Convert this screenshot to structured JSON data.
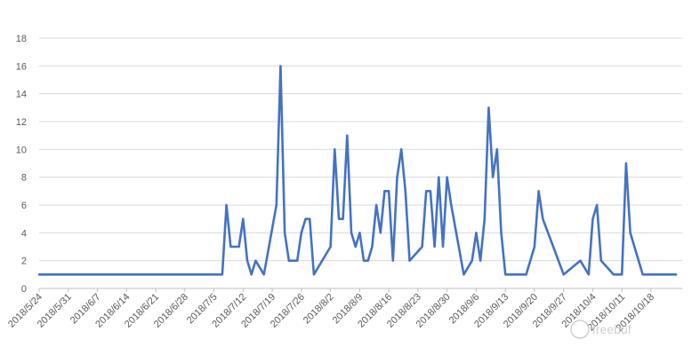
{
  "chart_data": {
    "type": "line",
    "title": "",
    "xlabel": "",
    "ylabel": "",
    "ylim": [
      0,
      18
    ],
    "y_ticks": [
      0,
      2,
      4,
      6,
      8,
      10,
      12,
      14,
      16,
      18
    ],
    "grid": true,
    "legend": "none",
    "x_tick_labels": [
      "2018/5/24",
      "2018/5/31",
      "2018/6/7",
      "2018/6/14",
      "2018/6/21",
      "2018/6/28",
      "2018/7/5",
      "2018/7/12",
      "2018/7/19",
      "2018/7/26",
      "2018/8/2",
      "2018/8/9",
      "2018/8/16",
      "2018/8/23",
      "2018/8/30",
      "2018/9/6",
      "2018/9/13",
      "2018/9/20",
      "2018/9/27",
      "2018/10/4",
      "2018/10/11",
      "2018/10/18"
    ],
    "series": [
      {
        "color": "#4472c4",
        "points": [
          [
            "2018/5/24",
            1
          ],
          [
            "2018/7/7",
            1
          ],
          [
            "2018/7/8",
            6
          ],
          [
            "2018/7/9",
            3
          ],
          [
            "2018/7/11",
            3
          ],
          [
            "2018/7/12",
            5
          ],
          [
            "2018/7/13",
            2
          ],
          [
            "2018/7/14",
            1
          ],
          [
            "2018/7/15",
            2
          ],
          [
            "2018/7/17",
            1
          ],
          [
            "2018/7/20",
            6
          ],
          [
            "2018/7/21",
            16
          ],
          [
            "2018/7/22",
            4
          ],
          [
            "2018/7/23",
            2
          ],
          [
            "2018/7/25",
            2
          ],
          [
            "2018/7/26",
            4
          ],
          [
            "2018/7/27",
            5
          ],
          [
            "2018/7/28",
            5
          ],
          [
            "2018/7/29",
            1
          ],
          [
            "2018/8/2",
            3
          ],
          [
            "2018/8/3",
            10
          ],
          [
            "2018/8/4",
            5
          ],
          [
            "2018/8/5",
            5
          ],
          [
            "2018/8/6",
            11
          ],
          [
            "2018/8/7",
            4
          ],
          [
            "2018/8/8",
            3
          ],
          [
            "2018/8/9",
            4
          ],
          [
            "2018/8/10",
            2
          ],
          [
            "2018/8/11",
            2
          ],
          [
            "2018/8/12",
            3
          ],
          [
            "2018/8/13",
            6
          ],
          [
            "2018/8/14",
            4
          ],
          [
            "2018/8/15",
            7
          ],
          [
            "2018/8/16",
            7
          ],
          [
            "2018/8/17",
            2
          ],
          [
            "2018/8/18",
            8
          ],
          [
            "2018/8/19",
            10
          ],
          [
            "2018/8/20",
            7
          ],
          [
            "2018/8/21",
            2
          ],
          [
            "2018/8/24",
            3
          ],
          [
            "2018/8/25",
            7
          ],
          [
            "2018/8/26",
            7
          ],
          [
            "2018/8/27",
            3
          ],
          [
            "2018/8/28",
            8
          ],
          [
            "2018/8/29",
            3
          ],
          [
            "2018/8/30",
            8
          ],
          [
            "2018/8/31",
            6
          ],
          [
            "2018/9/3",
            1
          ],
          [
            "2018/9/5",
            2
          ],
          [
            "2018/9/6",
            4
          ],
          [
            "2018/9/7",
            2
          ],
          [
            "2018/9/8",
            5
          ],
          [
            "2018/9/9",
            13
          ],
          [
            "2018/9/10",
            8
          ],
          [
            "2018/9/11",
            10
          ],
          [
            "2018/9/12",
            4
          ],
          [
            "2018/9/13",
            1
          ],
          [
            "2018/9/18",
            1
          ],
          [
            "2018/9/20",
            3
          ],
          [
            "2018/9/21",
            7
          ],
          [
            "2018/9/22",
            5
          ],
          [
            "2018/9/27",
            1
          ],
          [
            "2018/10/1",
            2
          ],
          [
            "2018/10/3",
            1
          ],
          [
            "2018/10/4",
            5
          ],
          [
            "2018/10/5",
            6
          ],
          [
            "2018/10/6",
            2
          ],
          [
            "2018/10/9",
            1
          ],
          [
            "2018/10/11",
            1
          ],
          [
            "2018/10/12",
            9
          ],
          [
            "2018/10/13",
            4
          ],
          [
            "2018/10/16",
            1
          ],
          [
            "2018/10/24",
            1
          ]
        ]
      }
    ]
  }
}
